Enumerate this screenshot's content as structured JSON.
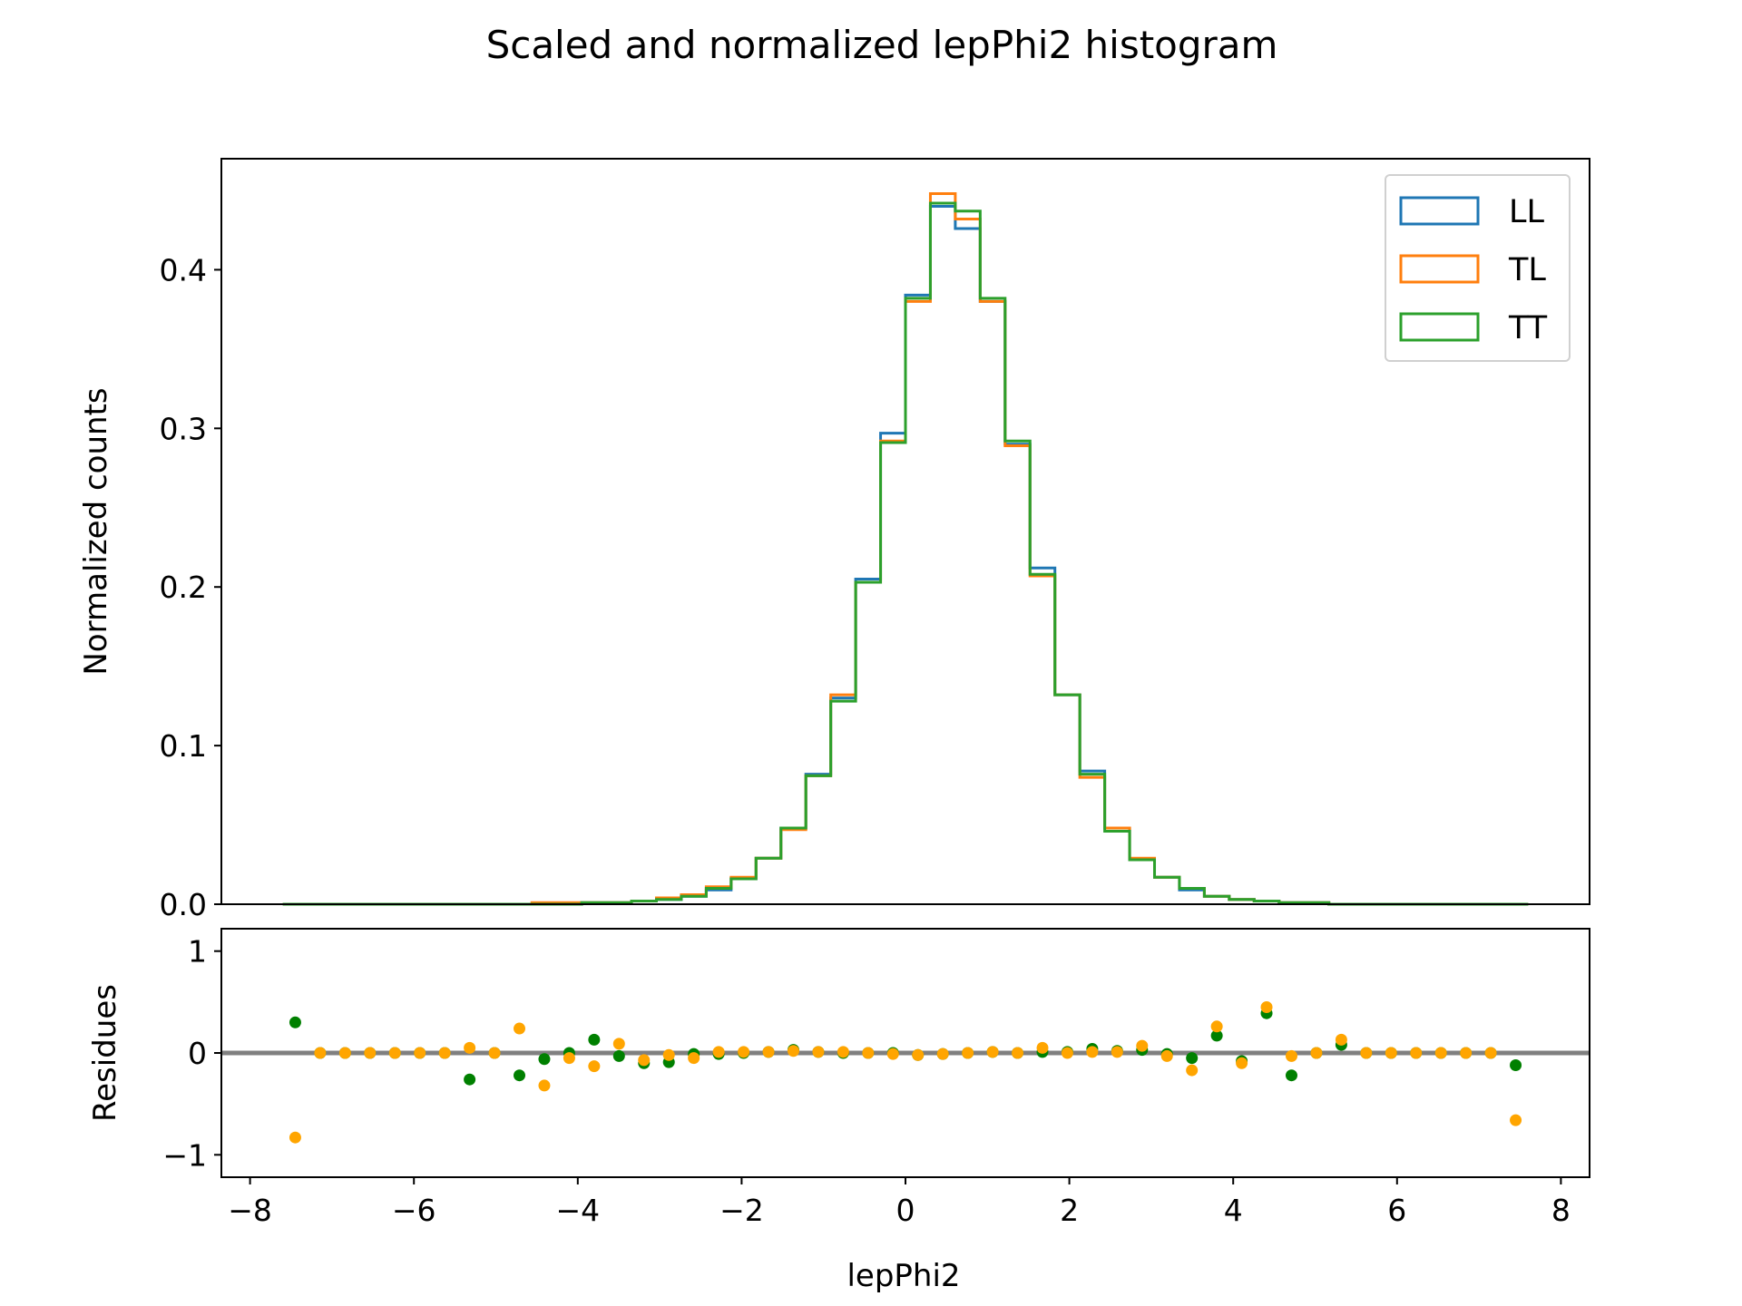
{
  "chart_data": {
    "type": "histogram",
    "title": "Scaled and normalized lepPhi2 histogram",
    "legend_position": "top-right",
    "colors": {
      "LL": "#1f77b4",
      "TL": "#ff7f0e",
      "TT": "#2ca02c",
      "residual_TL": "#ffa500",
      "residual_TT": "#008000",
      "zero_line": "#808080"
    },
    "top": {
      "xlabel": "",
      "ylabel": "Normalized counts",
      "xlim": [
        -8.35,
        8.35
      ],
      "ylim": [
        0,
        0.47
      ],
      "yticks": [
        0.0,
        0.1,
        0.2,
        0.3,
        0.4
      ],
      "ytick_labels": [
        "0.0",
        "0.1",
        "0.2",
        "0.3",
        "0.4"
      ],
      "bin_range": [
        -7.6,
        7.6
      ],
      "bin_count": 50,
      "series": [
        {
          "name": "LL",
          "values": [
            0,
            0,
            0,
            0,
            0,
            0,
            0,
            0,
            0,
            0,
            0,
            0,
            0.001,
            0.001,
            0.002,
            0.003,
            0.005,
            0.009,
            0.016,
            0.029,
            0.048,
            0.082,
            0.13,
            0.205,
            0.297,
            0.384,
            0.44,
            0.426,
            0.38,
            0.29,
            0.212,
            0.132,
            0.084,
            0.048,
            0.028,
            0.017,
            0.009,
            0.005,
            0.003,
            0.002,
            0.001,
            0.001,
            0,
            0,
            0,
            0,
            0,
            0,
            0,
            0
          ]
        },
        {
          "name": "TL",
          "values": [
            0,
            0,
            0,
            0,
            0,
            0,
            0,
            0,
            0,
            0,
            0.001,
            0.001,
            0.001,
            0.001,
            0.002,
            0.004,
            0.006,
            0.011,
            0.017,
            0.029,
            0.047,
            0.081,
            0.132,
            0.203,
            0.292,
            0.38,
            0.448,
            0.432,
            0.38,
            0.289,
            0.207,
            0.132,
            0.08,
            0.048,
            0.029,
            0.017,
            0.01,
            0.005,
            0.003,
            0.002,
            0.001,
            0.001,
            0,
            0,
            0,
            0,
            0,
            0,
            0,
            0
          ]
        },
        {
          "name": "TT",
          "values": [
            0,
            0,
            0,
            0,
            0,
            0,
            0,
            0,
            0,
            0,
            0,
            0,
            0.001,
            0.001,
            0.002,
            0.003,
            0.005,
            0.01,
            0.016,
            0.029,
            0.048,
            0.081,
            0.128,
            0.203,
            0.291,
            0.382,
            0.442,
            0.437,
            0.382,
            0.292,
            0.208,
            0.132,
            0.082,
            0.046,
            0.028,
            0.017,
            0.01,
            0.005,
            0.003,
            0.002,
            0.001,
            0.001,
            0,
            0,
            0,
            0,
            0,
            0,
            0,
            0
          ]
        }
      ]
    },
    "bottom": {
      "xlabel": "lepPhi2",
      "ylabel": "Residues",
      "xlim": [
        -8.35,
        8.35
      ],
      "ylim": [
        -1.22,
        1.22
      ],
      "xticks": [
        -8,
        -6,
        -4,
        -2,
        0,
        2,
        4,
        6,
        8
      ],
      "xtick_labels": [
        "−8",
        "−6",
        "−4",
        "−2",
        "0",
        "2",
        "4",
        "6",
        "8"
      ],
      "yticks": [
        -1,
        0,
        1
      ],
      "ytick_labels": [
        "−1",
        "0",
        "1"
      ],
      "x": [
        -7.448,
        -7.144,
        -6.84,
        -6.536,
        -6.232,
        -5.928,
        -5.624,
        -5.32,
        -5.016,
        -4.712,
        -4.408,
        -4.104,
        -3.8,
        -3.496,
        -3.192,
        -2.888,
        -2.584,
        -2.28,
        -1.976,
        -1.672,
        -1.368,
        -1.064,
        -0.76,
        -0.456,
        -0.152,
        0.152,
        0.456,
        0.76,
        1.064,
        1.368,
        1.672,
        1.976,
        2.28,
        2.584,
        2.888,
        3.192,
        3.496,
        3.8,
        4.104,
        4.408,
        4.712,
        5.016,
        5.32,
        5.624,
        5.928,
        6.232,
        6.536,
        6.84,
        7.144,
        7.448
      ],
      "series": [
        {
          "name": "TL",
          "values": [
            -0.83,
            0,
            0,
            0,
            0,
            0,
            0,
            0.05,
            0,
            0.24,
            -0.32,
            -0.05,
            -0.13,
            0.09,
            -0.07,
            -0.02,
            -0.05,
            0.01,
            0.01,
            0.01,
            0.02,
            0.01,
            0.01,
            0.0,
            -0.01,
            -0.02,
            -0.01,
            0,
            0.01,
            0.0,
            0.05,
            0.0,
            0.01,
            0.01,
            0.07,
            -0.03,
            -0.17,
            0.26,
            -0.1,
            0.45,
            -0.03,
            0,
            0.13,
            0,
            0,
            0,
            0,
            0,
            0,
            -0.66
          ]
        },
        {
          "name": "TT",
          "values": [
            0.3,
            0,
            0,
            0,
            0,
            0,
            0,
            -0.26,
            0,
            -0.22,
            -0.06,
            0,
            0.13,
            -0.03,
            -0.1,
            -0.09,
            -0.01,
            -0.01,
            0.0,
            0.01,
            0.03,
            0.01,
            0.0,
            0.0,
            0.0,
            -0.02,
            -0.01,
            0,
            0.01,
            0.0,
            0.01,
            0.01,
            0.04,
            0.02,
            0.03,
            -0.01,
            -0.05,
            0.17,
            -0.08,
            0.39,
            -0.22,
            0,
            0.08,
            0,
            0,
            0,
            0,
            0,
            0,
            -0.12
          ]
        }
      ]
    }
  }
}
